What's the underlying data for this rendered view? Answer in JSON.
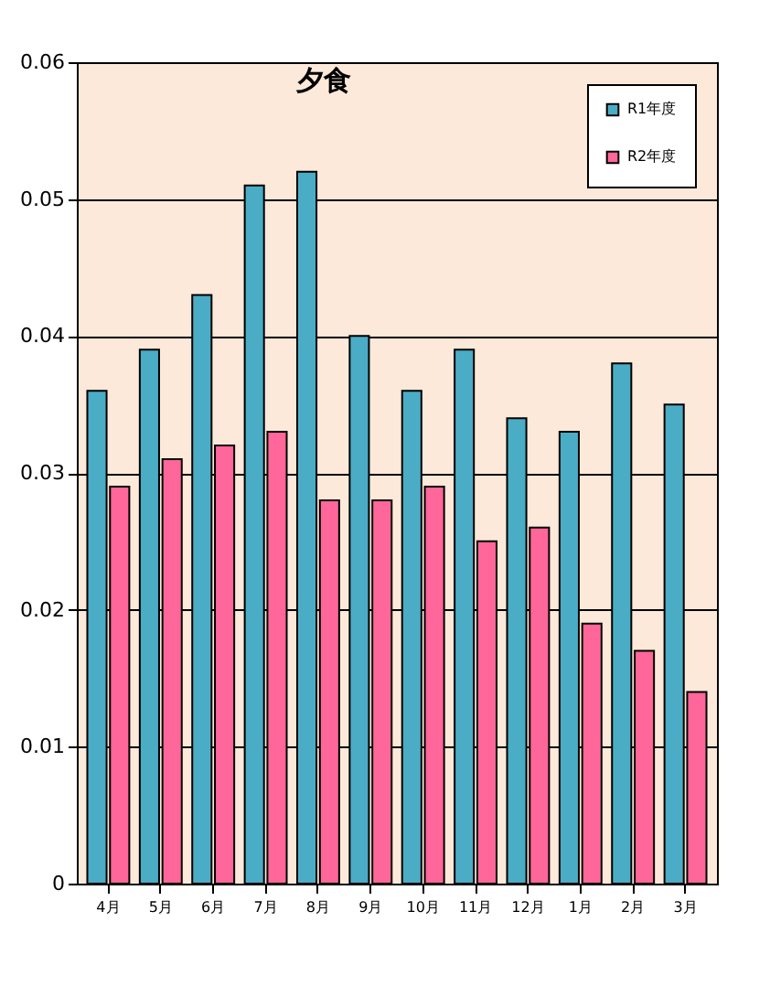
{
  "chart_data": {
    "type": "bar",
    "title": "夕食",
    "categories": [
      "4月",
      "5月",
      "6月",
      "7月",
      "8月",
      "9月",
      "10月",
      "11月",
      "12月",
      "1月",
      "2月",
      "3月"
    ],
    "series": [
      {
        "name": "R1年度",
        "color": "#4bacc6",
        "values": [
          0.036,
          0.039,
          0.043,
          0.051,
          0.052,
          0.04,
          0.036,
          0.039,
          0.034,
          0.033,
          0.038,
          0.035
        ]
      },
      {
        "name": "R2年度",
        "color": "#ff6699",
        "values": [
          0.029,
          0.031,
          0.032,
          0.033,
          0.028,
          0.028,
          0.029,
          0.025,
          0.026,
          0.019,
          0.017,
          0.014
        ]
      }
    ],
    "ylim": [
      0,
      0.06
    ],
    "yticks": [
      0,
      0.01,
      0.02,
      0.03,
      0.04,
      0.05,
      0.06
    ],
    "grid": "y",
    "legend": "top right"
  }
}
